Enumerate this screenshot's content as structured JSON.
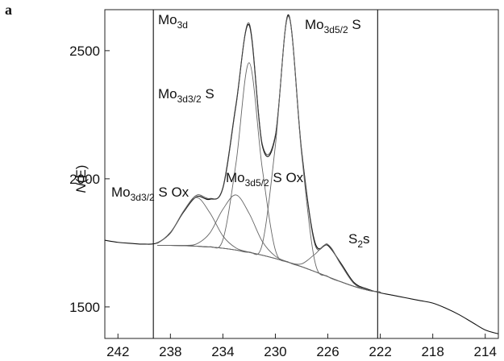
{
  "panel_label": "a",
  "chart_data": {
    "type": "line",
    "y_label": [
      "N",
      "(E)"
    ],
    "xlim": [
      243,
      213
    ],
    "ylim": [
      1377,
      2660
    ],
    "xticks": [
      242,
      238,
      234,
      230,
      226,
      222,
      218,
      214
    ],
    "yticks": [
      1500,
      2000,
      2500
    ],
    "vlines": [
      239.3,
      222.2
    ],
    "x": [
      243,
      242,
      241,
      240,
      239,
      238,
      237,
      236,
      235,
      234,
      233,
      232,
      231,
      230,
      229,
      228,
      227,
      226,
      225,
      224,
      223,
      222,
      221,
      220,
      219,
      218,
      217,
      216,
      215,
      214,
      213
    ],
    "series": [
      {
        "color": "#111111",
        "values": [
          1760,
          1752,
          1748,
          1745,
          1750,
          1790,
          1870,
          1930,
          1920,
          1965,
          2290,
          2600,
          2130,
          2165,
          2640,
          2110,
          1755,
          1740,
          1670,
          1595,
          1570,
          1555,
          1545,
          1535,
          1525,
          1515,
          1495,
          1470,
          1440,
          1410,
          1395
        ]
      },
      {
        "color": "#444444",
        "values": [
          null,
          null,
          null,
          null,
          1748,
          1788,
          1874,
          1936,
          1923,
          1962,
          2284,
          2607,
          2137,
          2171,
          2636,
          2108,
          1747,
          1744,
          1665,
          1591,
          1566,
          1558,
          null,
          null,
          null,
          null,
          null,
          null,
          null,
          null,
          null
        ]
      },
      {
        "color": "#555555",
        "values": [
          null,
          null,
          null,
          null,
          1740,
          1740,
          1739,
          1737,
          1734,
          1729,
          1722,
          1713,
          1702,
          1689,
          1674,
          1657,
          1638,
          1618,
          1598,
          1580,
          1566,
          1558,
          null,
          null,
          null,
          null,
          null,
          null,
          null,
          null,
          null
        ]
      },
      {
        "color": "#666666",
        "values": [
          null,
          null,
          null,
          null,
          1740,
          1740,
          1739,
          1737,
          1734,
          1729,
          1722,
          1714,
          1744,
          2129,
          2634,
          2097,
          1680,
          1619,
          1598,
          1580,
          1566,
          1558,
          null,
          null,
          null,
          null,
          null,
          null,
          null,
          null,
          null
        ]
      },
      {
        "color": "#666666",
        "values": [
          null,
          null,
          null,
          null,
          1740,
          1740,
          1739,
          1737,
          1735,
          1762,
          2061,
          2453,
          2041,
          1722,
          1675,
          1657,
          1638,
          1618,
          1598,
          1580,
          1566,
          1558,
          null,
          null,
          null,
          null,
          null,
          null,
          null,
          null,
          null
        ]
      },
      {
        "color": "#666666",
        "values": [
          null,
          null,
          null,
          null,
          1740,
          1740,
          1740,
          1746,
          1788,
          1881,
          1937,
          1865,
          1756,
          1698,
          1675,
          1657,
          1638,
          1618,
          1598,
          1580,
          1566,
          1558,
          null,
          null,
          null,
          null,
          null,
          null,
          null,
          null,
          null
        ]
      },
      {
        "color": "#666666",
        "values": [
          null,
          null,
          null,
          null,
          1748,
          1788,
          1873,
          1927,
          1868,
          1777,
          1730,
          1714,
          1702,
          1689,
          1674,
          1657,
          1638,
          1618,
          1598,
          1580,
          1566,
          1558,
          null,
          null,
          null,
          null,
          null,
          null,
          null,
          null,
          null
        ]
      },
      {
        "color": "#666666",
        "values": [
          null,
          null,
          null,
          null,
          1740,
          1740,
          1739,
          1737,
          1734,
          1729,
          1722,
          1713,
          1702,
          1689,
          1674,
          1668,
          1705,
          1743,
          1665,
          1591,
          1566,
          1558,
          null,
          null,
          null,
          null,
          null,
          null,
          null,
          null,
          null
        ]
      }
    ],
    "annotations": [
      [
        "Mo",
        "3d",
        ""
      ],
      [
        "Mo",
        "3d5/2",
        " S"
      ],
      [
        "Mo",
        "3d3/2",
        " S"
      ],
      [
        "Mo",
        "3d3/2",
        " S Ox"
      ],
      [
        "Mo",
        "3d5/2",
        " S Ox"
      ],
      [
        "S",
        "2",
        "s"
      ]
    ]
  }
}
